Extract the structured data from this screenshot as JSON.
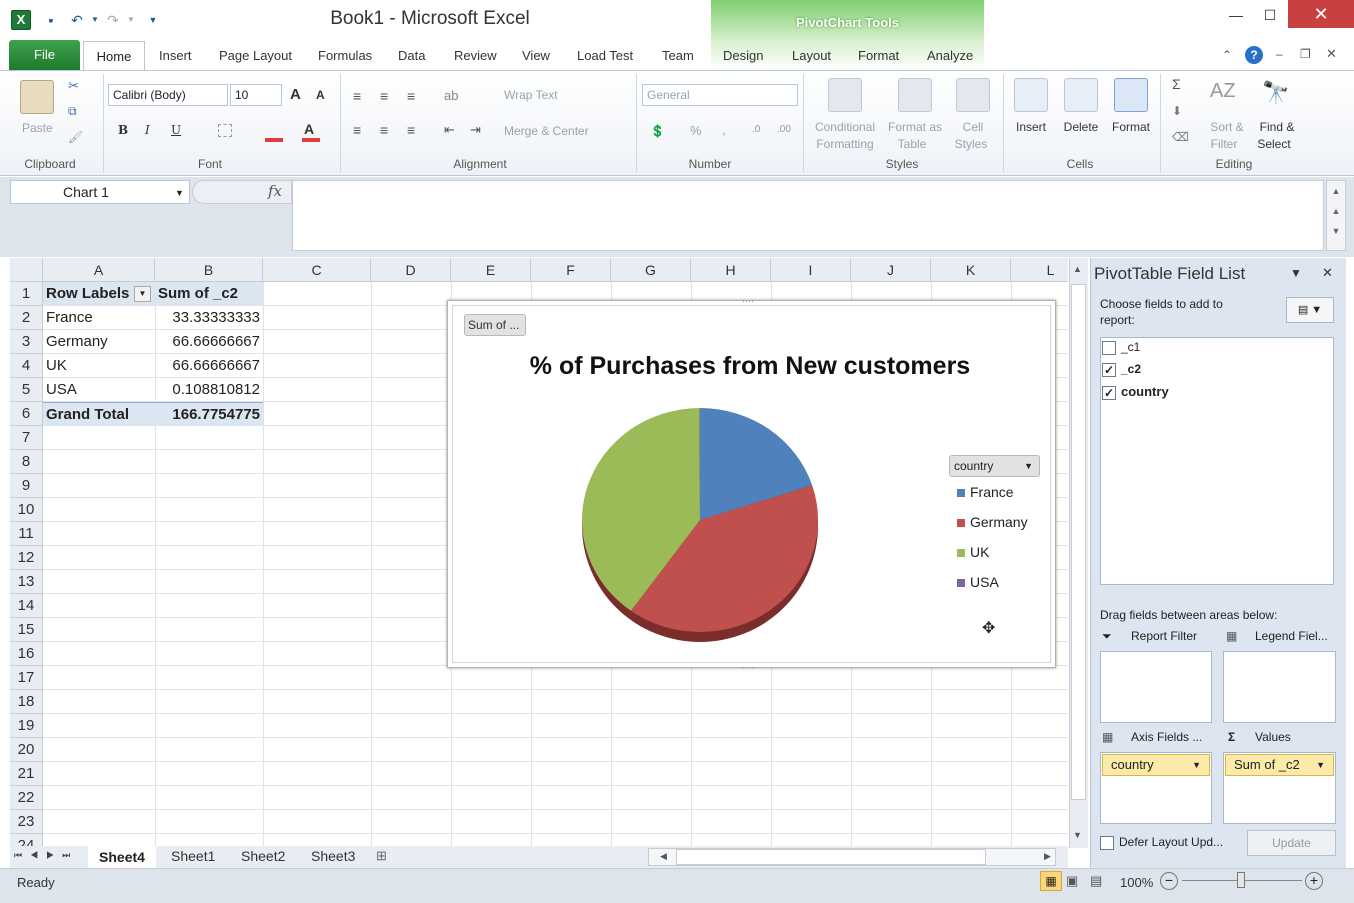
{
  "window": {
    "title": "Book1 - Microsoft Excel",
    "contextual_group": "PivotChart Tools",
    "minimize": "—",
    "restore": "☐",
    "close": "✕"
  },
  "tabs": {
    "file": "File",
    "items": [
      "Home",
      "Insert",
      "Page Layout",
      "Formulas",
      "Data",
      "Review",
      "View",
      "Load Test",
      "Team",
      "Design",
      "Layout",
      "Format",
      "Analyze"
    ]
  },
  "ribbon": {
    "clipboard": {
      "label": "Clipboard",
      "paste": "Paste"
    },
    "font": {
      "label": "Font",
      "name": "Calibri (Body)",
      "size": "10",
      "bold": "B",
      "italic": "I",
      "underline": "U"
    },
    "alignment": {
      "label": "Alignment",
      "wrap": "Wrap Text",
      "merge": "Merge & Center"
    },
    "number": {
      "label": "Number",
      "format": "General",
      "percent": "%",
      "comma": ","
    },
    "styles": {
      "label": "Styles",
      "conditional": "Conditional",
      "conditional2": "Formatting",
      "format_table": "Format as",
      "format_table2": "Table",
      "cell_styles": "Cell",
      "cell_styles2": "Styles"
    },
    "cells": {
      "label": "Cells",
      "insert": "Insert",
      "delete": "Delete",
      "format": "Format"
    },
    "editing": {
      "label": "Editing",
      "sort": "Sort &",
      "sort2": "Filter",
      "find": "Find &",
      "find2": "Select",
      "sigma": "Σ"
    }
  },
  "formula_bar": {
    "name_box": "Chart 1",
    "fx": "fx",
    "content": ""
  },
  "grid": {
    "columns": [
      "A",
      "B",
      "C",
      "D",
      "E",
      "F",
      "G",
      "H",
      "I",
      "J",
      "K",
      "L"
    ],
    "rows": [
      "1",
      "2",
      "3",
      "4",
      "5",
      "6",
      "7",
      "8",
      "9",
      "10",
      "11",
      "12",
      "13",
      "14",
      "15",
      "16",
      "17",
      "18",
      "19",
      "20",
      "21",
      "22",
      "23",
      "24"
    ],
    "pivot": {
      "header_labels": "Row Labels",
      "header_sum": "Sum of _c2",
      "rows": [
        {
          "label": "France",
          "value": "33.33333333"
        },
        {
          "label": "Germany",
          "value": "66.66666667"
        },
        {
          "label": "UK",
          "value": "66.66666667"
        },
        {
          "label": "USA",
          "value": "0.108810812"
        }
      ],
      "total_label": "Grand Total",
      "total_value": "166.7754775"
    }
  },
  "chart": {
    "field_button": "Sum of ...",
    "title": "% of Purchases from New customers",
    "legend_button": "country"
  },
  "chart_data": {
    "type": "pie",
    "title": "% of Purchases from New customers",
    "categories": [
      "France",
      "Germany",
      "UK",
      "USA"
    ],
    "values": [
      33.33333333,
      66.66666667,
      66.66666667,
      0.108810812
    ],
    "colors": [
      "#4f81bd",
      "#c0504d",
      "#9bbb59",
      "#8064a2"
    ],
    "legend": "right"
  },
  "sheets": {
    "tabs": [
      "Sheet4",
      "Sheet1",
      "Sheet2",
      "Sheet3"
    ],
    "active": "Sheet4"
  },
  "status": {
    "text": "Ready",
    "zoom": "100%"
  },
  "pivot_panel": {
    "title": "PivotTable Field List",
    "choose": "Choose fields to add to",
    "choose2": "report:",
    "fields": [
      {
        "name": "_c1",
        "checked": ""
      },
      {
        "name": "_c2",
        "checked": "✓"
      },
      {
        "name": "country",
        "checked": "✓"
      }
    ],
    "drag": "Drag fields between areas below:",
    "report_filter": "Report Filter",
    "legend_fields": "Legend Fiel...",
    "axis_fields": "Axis Fields ...",
    "values": "Values",
    "axis_item": "country",
    "values_item": "Sum of _c2",
    "defer": "Defer Layout Upd...",
    "update": "Update"
  }
}
